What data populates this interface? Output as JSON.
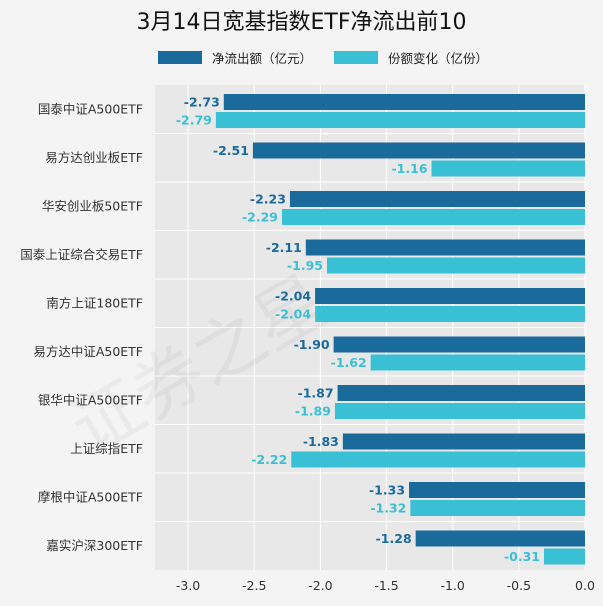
{
  "colors": {
    "net_outflow": "#1b6a9c",
    "share_change": "#3ac0d4",
    "plot_bg": "#e8e8e8",
    "grid": "#ffffff"
  },
  "chart_data": {
    "type": "bar",
    "orientation": "horizontal",
    "title": "3月14日宽基指数ETF净流出前10",
    "categories": [
      "国泰中证A500ETF",
      "易方达创业板ETF",
      "华安创业板50ETF",
      "国泰上证综合交易ETF",
      "南方上证180ETF",
      "易方达中证A50ETF",
      "银华中证A500ETF",
      "上证综指ETF",
      "摩根中证A500ETF",
      "嘉实沪深300ETF"
    ],
    "series": [
      {
        "name": "净流出额（亿元）",
        "values": [
          -2.73,
          -2.51,
          -2.23,
          -2.11,
          -2.04,
          -1.9,
          -1.87,
          -1.83,
          -1.33,
          -1.28
        ]
      },
      {
        "name": "份额变化（亿份）",
        "values": [
          -2.79,
          -1.16,
          -2.29,
          -1.95,
          -2.04,
          -1.62,
          -1.89,
          -2.22,
          -1.32,
          -0.31
        ]
      }
    ],
    "xlim": [
      -3.25,
      0
    ],
    "xticks": [
      -3.0,
      -2.5,
      -2.0,
      -1.5,
      -1.0,
      -0.5,
      0.0
    ],
    "xtick_labels": [
      "-3.0",
      "-2.5",
      "-2.0",
      "-1.5",
      "-1.0",
      "-0.5",
      "0.0"
    ],
    "grid": true,
    "legend_position": "top"
  }
}
